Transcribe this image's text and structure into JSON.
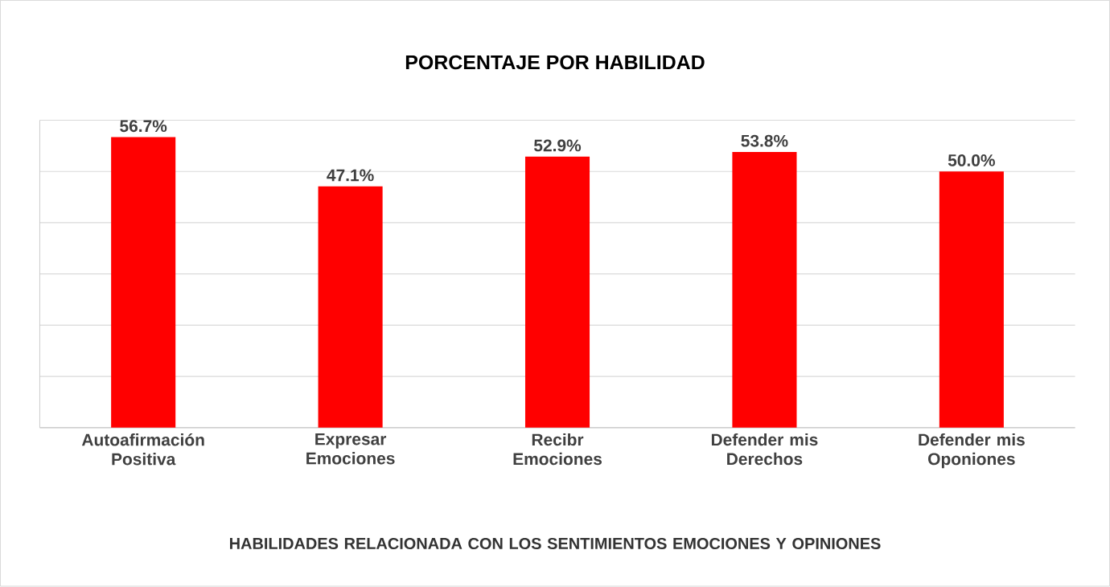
{
  "chart_data": {
    "type": "bar",
    "title": "PORCENTAJE POR HABILIDAD",
    "xlabel": "HABILIDADES RELACIONADA CON LOS SENTIMIENTOS EMOCIONES Y OPINIONES",
    "categories": [
      "Autoafirmación Positiva",
      "Expresar Emociones",
      "Recibr Emociones",
      "Defender mis Derechos",
      "Defender mis Oponiones"
    ],
    "values": [
      56.7,
      47.1,
      52.9,
      53.8,
      50.0
    ],
    "value_labels": [
      "56.7%",
      "47.1%",
      "52.9%",
      "53.8%",
      "50.0%"
    ],
    "color": "#ff0000",
    "ylim": [
      0,
      60
    ],
    "yticks": [
      {
        "value": 0,
        "label": null
      },
      {
        "value": 10,
        "label": null
      },
      {
        "value": 20,
        "label": null
      },
      {
        "value": 30,
        "label": null
      },
      {
        "value": 40,
        "label": null
      },
      {
        "value": 50,
        "label": null
      },
      {
        "value": 60,
        "label": null
      }
    ],
    "grid": "y",
    "tick_labels": "x"
  }
}
